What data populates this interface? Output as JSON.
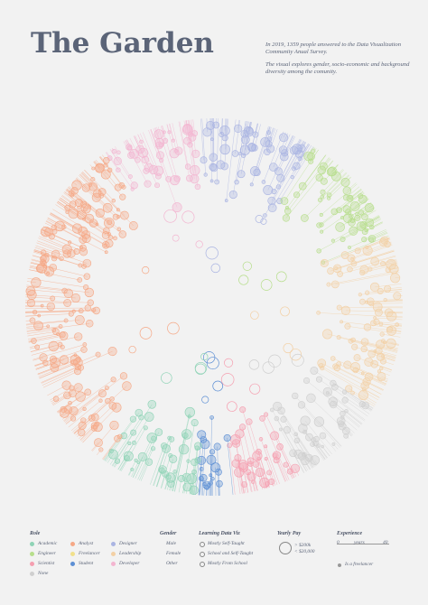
{
  "header": {
    "title": "The Garden",
    "intro": [
      "In 2019, 1359 people answered to the Data Visualization Community Anual Survey.",
      "The visual explores gender, socio-economic and background diversity among the comunity."
    ]
  },
  "legend": {
    "role": {
      "title": "Role",
      "items": [
        {
          "label": "Academic",
          "color": "#8fd3b6"
        },
        {
          "label": "Analyst",
          "color": "#f5a886"
        },
        {
          "label": "Designer",
          "color": "#aab4e2"
        },
        {
          "label": "Engineer",
          "color": "#b7de8c"
        },
        {
          "label": "Freelancer",
          "color": "#f1e08c"
        },
        {
          "label": "Leadership",
          "color": "#f3d0a5"
        },
        {
          "label": "Scientist",
          "color": "#f59fb0"
        },
        {
          "label": "Student",
          "color": "#5d8fd4"
        },
        {
          "label": "Developer",
          "color": "#f3b5d0"
        },
        {
          "label": "None",
          "color": "#cfcfcf"
        }
      ]
    },
    "gender": {
      "title": "Gender",
      "items": [
        "Male",
        "Female",
        "Other"
      ]
    },
    "learning": {
      "title": "Learning Data Viz",
      "items": [
        "Mostly Self-Taught",
        "School and Self-Taught",
        "Mostly From School"
      ]
    },
    "pay": {
      "title": "Yearly Pay",
      "items": [
        "> $200k",
        "< $20,000"
      ]
    },
    "experience": {
      "title": "Experience",
      "scale": [
        "0",
        "years",
        "40"
      ],
      "freelancer": "Is a freelancer"
    }
  }
}
